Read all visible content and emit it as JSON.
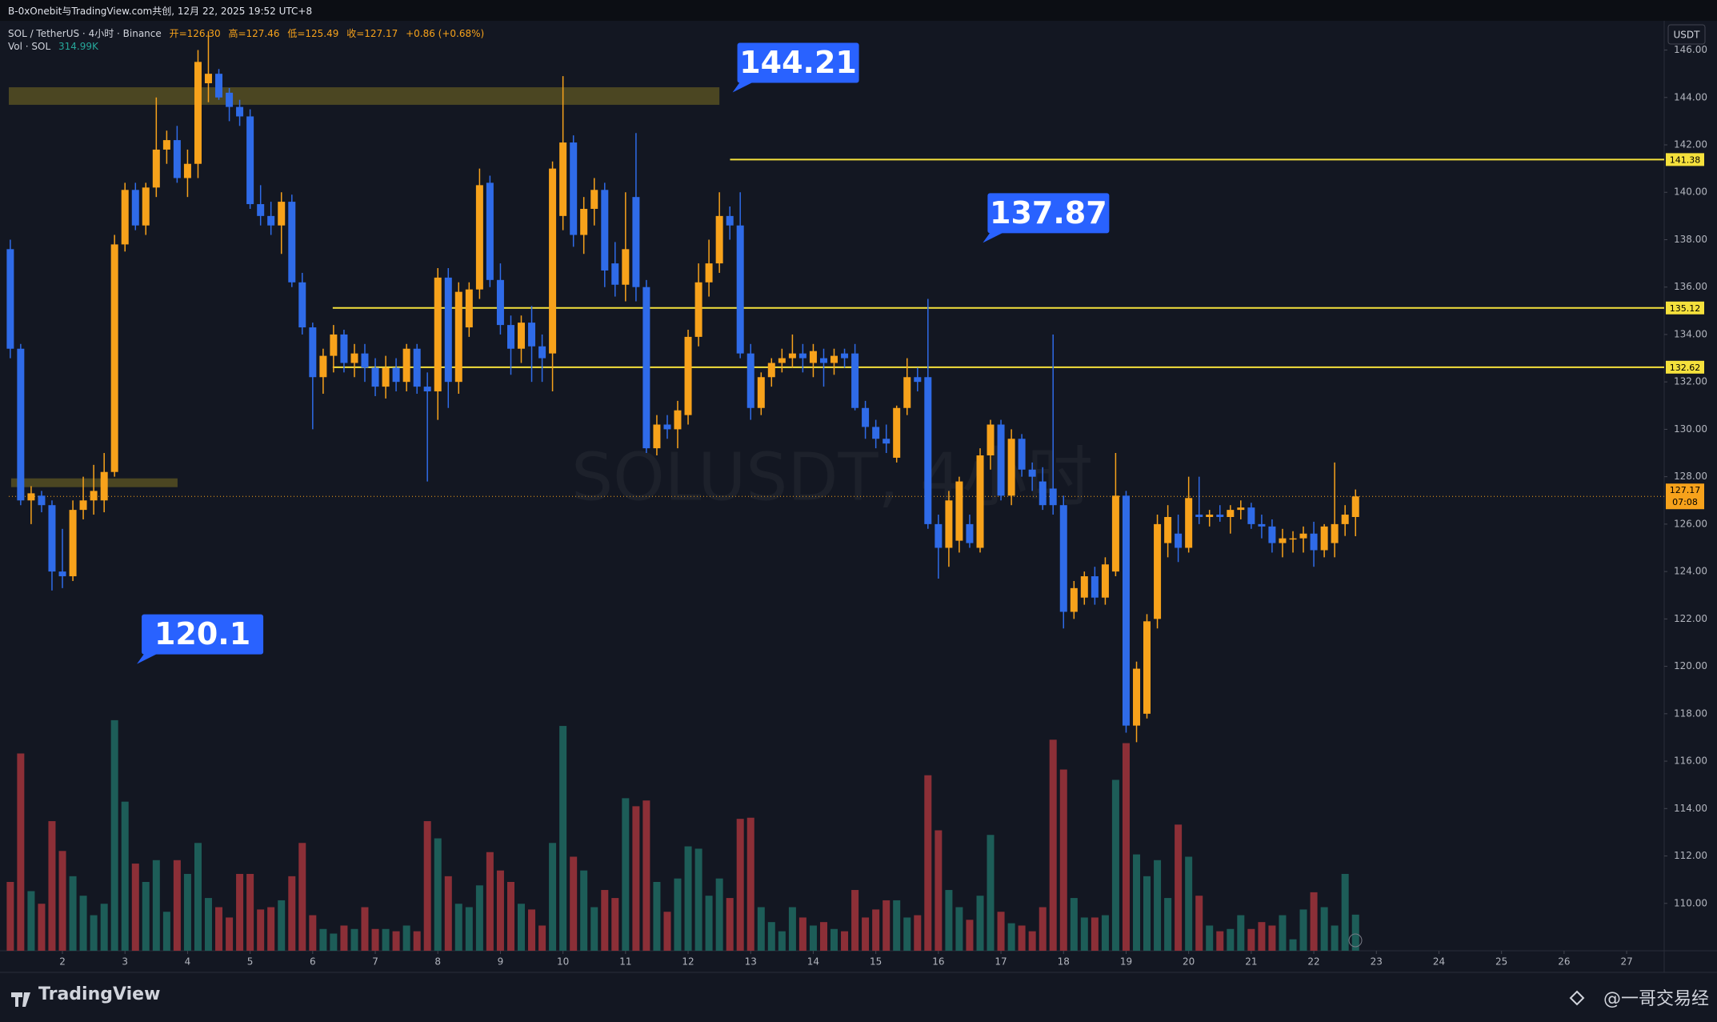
{
  "chart_data": {
    "type": "candlestick",
    "top_bar": "B-0xOnebit与TradingView.com共创, 12月 22, 2025 19:52 UTC+8",
    "title": "SOL / TetherUS · 4小时 · Binance",
    "ohlc_legend": [
      "开=126.30",
      "高=127.46",
      "低=125.49",
      "收=127.17",
      "+0.86 (+0.68%)"
    ],
    "volume_legend": [
      "Vol · SOL",
      "314.99K"
    ],
    "currency": "USDT",
    "watermark": "SOLUSDT, 4小时",
    "up_color": "#f7a21b",
    "down_color": "#2f6be8",
    "volume_up_color": "#1d5d58",
    "volume_down_color": "#8c2f37",
    "x": [
      1.167,
      1.333,
      1.5,
      1.667,
      1.833,
      2,
      2.167,
      2.333,
      2.5,
      2.667,
      2.833,
      3,
      3.167,
      3.333,
      3.5,
      3.667,
      3.833,
      4,
      4.167,
      4.333,
      4.5,
      4.667,
      4.833,
      5,
      5.167,
      5.333,
      5.5,
      5.667,
      5.833,
      6,
      6.167,
      6.333,
      6.5,
      6.667,
      6.833,
      7,
      7.167,
      7.333,
      7.5,
      7.667,
      7.833,
      8,
      8.167,
      8.333,
      8.5,
      8.667,
      8.833,
      9,
      9.167,
      9.333,
      9.5,
      9.667,
      9.833,
      10,
      10.167,
      10.333,
      10.5,
      10.667,
      10.833,
      11,
      11.167,
      11.333,
      11.5,
      11.667,
      11.833,
      12,
      12.167,
      12.333,
      12.5,
      12.667,
      12.833,
      13,
      13.167,
      13.333,
      13.5,
      13.667,
      13.833,
      14,
      14.167,
      14.333,
      14.5,
      14.667,
      14.833,
      15,
      15.167,
      15.333,
      15.5,
      15.667,
      15.833,
      16,
      16.167,
      16.333,
      16.5,
      16.667,
      16.833,
      17,
      17.167,
      17.333,
      17.5,
      17.667,
      17.833,
      18,
      18.167,
      18.333,
      18.5,
      18.667,
      18.833,
      19,
      19.167,
      19.333,
      19.5,
      19.667,
      19.833,
      20,
      20.167,
      20.333,
      20.5,
      20.667,
      20.833,
      21,
      21.167,
      21.333,
      21.5,
      21.667,
      21.833,
      22,
      22.167,
      22.333,
      22.5,
      22.667
    ],
    "open": [
      137.6,
      133.4,
      127.0,
      127.2,
      126.8,
      124.0,
      123.8,
      126.6,
      127.0,
      127.0,
      128.2,
      137.8,
      140.1,
      138.6,
      140.2,
      141.8,
      142.2,
      140.6,
      141.2,
      144.6,
      145.0,
      144.2,
      143.6,
      143.2,
      139.5,
      139.0,
      138.6,
      139.6,
      136.2,
      134.3,
      132.2,
      133.1,
      134.0,
      132.8,
      133.2,
      132.6,
      131.8,
      132.6,
      132.0,
      133.4,
      131.8,
      131.6,
      136.4,
      132.0,
      134.3,
      135.9,
      140.4,
      136.3,
      134.4,
      133.4,
      134.5,
      133.5,
      133.2,
      139.0,
      142.1,
      138.2,
      139.3,
      140.1,
      137.0,
      136.1,
      139.8,
      136.0,
      129.2,
      130.2,
      130.0,
      130.6,
      133.9,
      136.2,
      137.0,
      139.0,
      138.6,
      133.2,
      130.9,
      132.2,
      132.8,
      133.0,
      133.2,
      132.8,
      133.0,
      132.8,
      133.2,
      133.2,
      130.9,
      130.1,
      129.6,
      128.8,
      130.9,
      132.2,
      132.2,
      126.0,
      125.0,
      125.3,
      126.0,
      125.0,
      128.9,
      130.2,
      127.2,
      129.6,
      128.3,
      127.8,
      127.5,
      126.8,
      122.3,
      122.9,
      123.8,
      122.9,
      124.0,
      127.2,
      117.5,
      118.0,
      122.0,
      125.2,
      125.6,
      125.0,
      126.4,
      126.3,
      126.4,
      126.3,
      126.6,
      126.7,
      126.0,
      125.9,
      125.2,
      125.4,
      125.4,
      125.6,
      124.9,
      125.2,
      126.0,
      126.3
    ],
    "high": [
      138.0,
      133.6,
      127.6,
      127.4,
      127.0,
      125.8,
      127.0,
      128.0,
      128.5,
      129.0,
      138.2,
      140.4,
      140.4,
      140.4,
      144.0,
      142.6,
      142.8,
      141.8,
      146.0,
      146.8,
      145.2,
      144.4,
      143.9,
      143.5,
      140.3,
      139.6,
      140.0,
      139.9,
      136.6,
      134.5,
      133.4,
      134.4,
      134.2,
      133.6,
      133.6,
      133.0,
      133.1,
      133.0,
      133.6,
      133.6,
      132.4,
      136.8,
      136.8,
      136.2,
      136.2,
      141.0,
      140.7,
      137.0,
      134.8,
      134.8,
      135.2,
      134.0,
      141.3,
      144.9,
      142.4,
      139.8,
      140.6,
      140.4,
      137.9,
      140.0,
      142.5,
      136.3,
      130.6,
      130.6,
      131.2,
      134.2,
      137.0,
      138.0,
      140.0,
      139.4,
      140.0,
      133.6,
      132.4,
      133.0,
      133.4,
      134.0,
      133.6,
      133.6,
      133.4,
      133.4,
      133.4,
      133.6,
      131.2,
      130.4,
      130.2,
      131.0,
      133.0,
      132.6,
      135.5,
      126.4,
      127.4,
      128.0,
      126.4,
      129.2,
      130.4,
      130.4,
      130.0,
      129.8,
      128.6,
      128.4,
      134.0,
      127.2,
      123.6,
      124.0,
      124.2,
      124.6,
      129.0,
      127.4,
      120.2,
      122.2,
      126.4,
      126.8,
      126.4,
      128.0,
      128.0,
      126.6,
      126.8,
      126.8,
      127.0,
      126.9,
      126.4,
      126.2,
      125.8,
      125.7,
      125.9,
      126.1,
      126.0,
      128.6,
      126.8,
      127.46
    ],
    "low": [
      133.0,
      126.8,
      126.0,
      126.5,
      123.2,
      123.3,
      123.6,
      126.2,
      126.4,
      126.5,
      128.0,
      137.5,
      138.4,
      138.2,
      139.8,
      141.2,
      140.4,
      139.8,
      140.6,
      143.8,
      143.9,
      143.0,
      142.8,
      139.3,
      138.6,
      138.2,
      137.4,
      136.0,
      134.0,
      130.0,
      131.5,
      132.4,
      132.4,
      132.2,
      132.0,
      131.4,
      131.3,
      131.6,
      131.6,
      131.5,
      127.8,
      130.4,
      130.9,
      131.5,
      133.9,
      135.5,
      136.0,
      134.0,
      132.3,
      132.8,
      132.0,
      132.0,
      131.6,
      138.4,
      137.7,
      137.4,
      138.6,
      136.0,
      135.6,
      135.4,
      135.4,
      129.0,
      128.9,
      129.6,
      129.2,
      130.2,
      133.5,
      135.6,
      136.6,
      138.0,
      133.0,
      130.4,
      130.6,
      131.8,
      132.4,
      132.6,
      132.4,
      132.2,
      131.8,
      132.3,
      132.6,
      130.8,
      129.6,
      129.2,
      129.0,
      128.6,
      130.6,
      131.6,
      125.8,
      123.7,
      124.2,
      124.8,
      125.0,
      124.8,
      128.3,
      127.0,
      126.8,
      128.0,
      127.4,
      126.6,
      126.4,
      121.6,
      122.0,
      122.6,
      122.6,
      122.6,
      123.8,
      117.2,
      116.8,
      117.8,
      121.6,
      124.6,
      124.4,
      124.8,
      126.0,
      125.9,
      126.1,
      125.6,
      126.2,
      125.8,
      125.4,
      124.8,
      124.6,
      124.8,
      124.8,
      124.2,
      124.6,
      124.6,
      125.5,
      125.49
    ],
    "close": [
      133.4,
      127.0,
      127.3,
      126.8,
      124.0,
      123.8,
      126.6,
      127.0,
      127.4,
      128.2,
      137.8,
      140.1,
      138.6,
      140.2,
      141.8,
      142.2,
      140.6,
      141.2,
      145.5,
      145.0,
      144.0,
      143.6,
      143.2,
      139.5,
      139.0,
      138.6,
      139.6,
      136.2,
      134.3,
      132.2,
      133.1,
      134.0,
      132.8,
      133.2,
      132.6,
      131.8,
      132.6,
      132.0,
      133.4,
      131.8,
      131.6,
      136.4,
      132.0,
      135.8,
      135.9,
      140.3,
      136.3,
      134.4,
      133.4,
      134.5,
      133.5,
      133.0,
      141.0,
      142.1,
      138.2,
      139.3,
      140.1,
      136.7,
      136.1,
      137.6,
      136.0,
      129.2,
      130.2,
      130.0,
      130.8,
      133.9,
      136.2,
      137.0,
      139.0,
      138.6,
      133.2,
      130.9,
      132.2,
      132.8,
      133.0,
      133.2,
      133.0,
      133.3,
      132.8,
      133.1,
      133.0,
      130.9,
      130.1,
      129.6,
      129.4,
      130.9,
      132.2,
      132.0,
      126.0,
      125.0,
      127.0,
      127.8,
      125.2,
      128.9,
      130.2,
      127.2,
      129.6,
      128.3,
      128.0,
      126.8,
      126.8,
      122.3,
      123.3,
      123.8,
      122.9,
      124.3,
      127.2,
      117.5,
      119.9,
      121.9,
      126.0,
      126.3,
      125.0,
      127.1,
      126.3,
      126.4,
      126.3,
      126.6,
      126.7,
      126.0,
      125.9,
      125.2,
      125.4,
      125.4,
      125.6,
      124.9,
      125.9,
      126.0,
      126.4,
      127.17
    ],
    "volume": [
      600000,
      1720000,
      520000,
      410000,
      1130000,
      870000,
      650000,
      480000,
      310000,
      410000,
      2010000,
      1300000,
      760000,
      600000,
      790000,
      340000,
      790000,
      670000,
      940000,
      460000,
      380000,
      290000,
      670000,
      670000,
      360000,
      380000,
      440000,
      650000,
      940000,
      310000,
      190000,
      150000,
      220000,
      190000,
      380000,
      190000,
      190000,
      170000,
      220000,
      170000,
      1130000,
      980000,
      650000,
      410000,
      380000,
      570000,
      860000,
      700000,
      600000,
      410000,
      360000,
      220000,
      940000,
      1960000,
      820000,
      700000,
      380000,
      530000,
      460000,
      1330000,
      1260000,
      1310000,
      600000,
      340000,
      630000,
      910000,
      890000,
      480000,
      630000,
      460000,
      1150000,
      1160000,
      380000,
      250000,
      170000,
      380000,
      290000,
      220000,
      250000,
      190000,
      170000,
      530000,
      290000,
      360000,
      440000,
      440000,
      290000,
      310000,
      1530000,
      1050000,
      530000,
      380000,
      270000,
      480000,
      1010000,
      340000,
      240000,
      220000,
      170000,
      380000,
      1840000,
      1580000,
      460000,
      290000,
      290000,
      310000,
      1490000,
      1810000,
      840000,
      650000,
      790000,
      460000,
      1100000,
      820000,
      480000,
      220000,
      170000,
      190000,
      310000,
      190000,
      250000,
      220000,
      310000,
      100000,
      360000,
      510000,
      380000,
      220000,
      670000,
      314990
    ],
    "xlim": [
      1.143,
      27.6
    ],
    "xticks": [
      2,
      3,
      4,
      5,
      6,
      7,
      8,
      9,
      10,
      11,
      12,
      13,
      14,
      15,
      16,
      17,
      18,
      19,
      20,
      21,
      22,
      23,
      24,
      25,
      26,
      27
    ],
    "ylim": [
      108.0,
      147.2
    ],
    "yticks": [
      {
        "value": 110,
        "label": "110.00"
      },
      {
        "value": 112,
        "label": "112.00"
      },
      {
        "value": 114,
        "label": "114.00"
      },
      {
        "value": 116,
        "label": "116.00"
      },
      {
        "value": 118,
        "label": "118.00"
      },
      {
        "value": 120,
        "label": "120.00"
      },
      {
        "value": 122,
        "label": "122.00"
      },
      {
        "value": 124,
        "label": "124.00"
      },
      {
        "value": 126,
        "label": "126.00"
      },
      {
        "value": 128,
        "label": "128.00"
      },
      {
        "value": 130,
        "label": "130.00"
      },
      {
        "value": 132,
        "label": "132.00"
      },
      {
        "value": 134,
        "label": "134.00"
      },
      {
        "value": 136,
        "label": "136.00"
      },
      {
        "value": 138,
        "label": "138.00"
      },
      {
        "value": 140,
        "label": "140.00"
      },
      {
        "value": 142,
        "label": "142.00"
      },
      {
        "value": 144,
        "label": "144.00"
      },
      {
        "value": 146,
        "label": "146.00"
      }
    ],
    "volume_ylim": [
      0,
      8100000
    ],
    "grid": false,
    "levels": [
      {
        "value": 141.38,
        "start": 12.67,
        "color": "#f5e13c"
      },
      {
        "value": 135.12,
        "start": 6.32,
        "color": "#f5e13c"
      },
      {
        "value": 132.62,
        "start": 6.32,
        "color": "#f5e13c"
      }
    ],
    "last_price": {
      "value": 127.17,
      "countdown": "07:08",
      "color": "#f7a21b"
    },
    "zones": [
      {
        "top": 144.43,
        "bottom": 143.69,
        "start": 1.143,
        "end": 12.5,
        "color": "#4b4622"
      },
      {
        "top": 127.93,
        "bottom": 127.56,
        "start": 1.18,
        "end": 3.84,
        "color": "#4b4622"
      }
    ],
    "callouts": [
      {
        "value": 144.21,
        "x": 12.71
      },
      {
        "value": 137.87,
        "x": 16.71
      },
      {
        "value": 120.1,
        "x": 3.19
      }
    ],
    "callout_color": "#2962ff",
    "footer": {
      "logo": "TradingView",
      "credit": "@一哥交易经"
    }
  }
}
